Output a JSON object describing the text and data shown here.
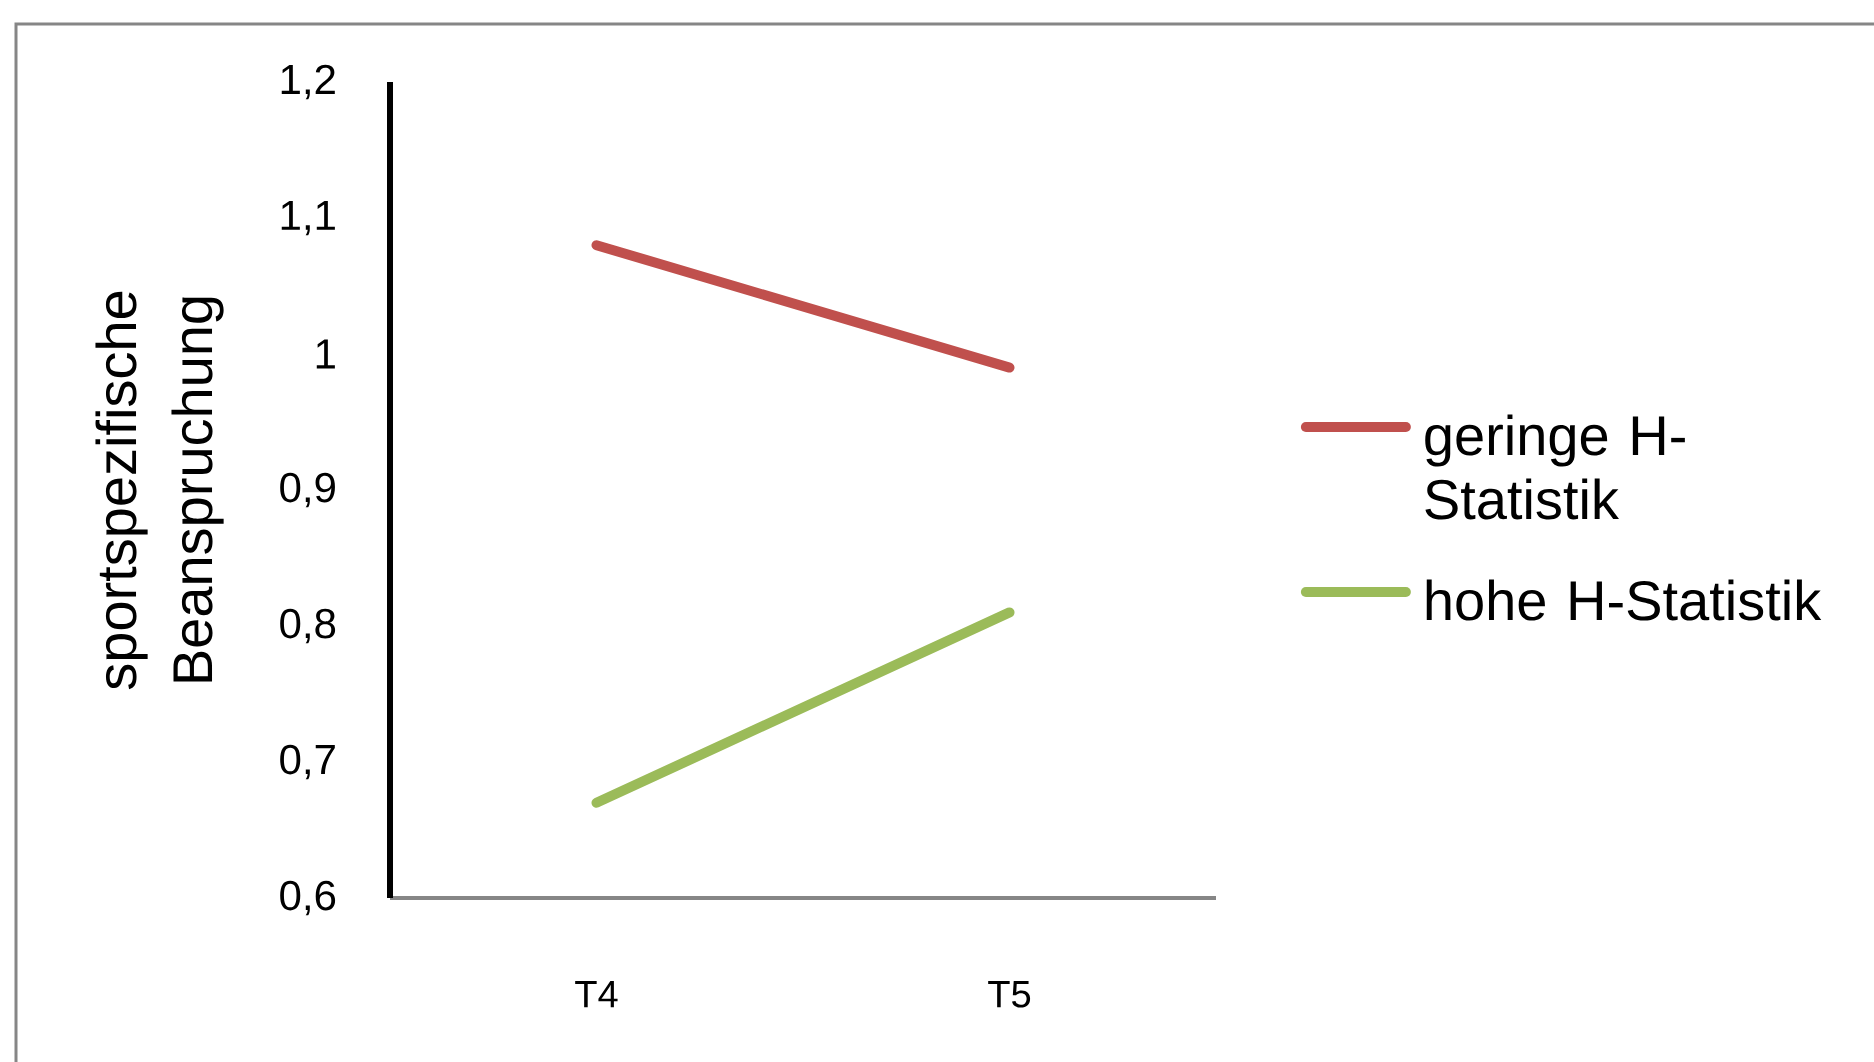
{
  "chart_data": {
    "type": "line",
    "categories": [
      "T4",
      "T5"
    ],
    "ylabel": "sportspezifische Beanspruchung",
    "ylim": [
      0.6,
      1.2
    ],
    "yticks": [
      {
        "value": 0.6,
        "label": "0,6"
      },
      {
        "value": 0.7,
        "label": "0,7"
      },
      {
        "value": 0.8,
        "label": "0,8"
      },
      {
        "value": 0.9,
        "label": "0,9"
      },
      1,
      {
        "value": 1.1,
        "label": "1,1"
      },
      {
        "value": 1.2,
        "label": "1,2"
      }
    ],
    "series": [
      {
        "name": "geringe H-Statistik",
        "color": "#c0504d",
        "values": [
          1.08,
          0.99
        ]
      },
      {
        "name": "hohe H-Statistik",
        "color": "#9bbb59",
        "values": [
          0.67,
          0.81
        ]
      }
    ],
    "legend": "right"
  }
}
